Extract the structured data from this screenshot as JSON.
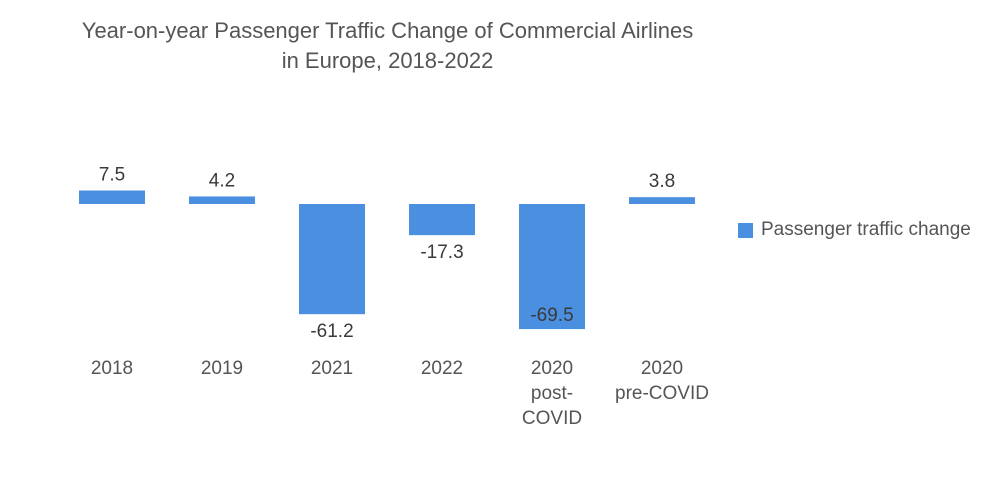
{
  "chart_data": {
    "type": "bar",
    "title": "Year-on-year Passenger Traffic Change of Commercial Airlines in Europe, 2018-2022",
    "title_lines": [
      "Year-on-year Passenger Traffic Change of Commercial Airlines",
      "in Europe, 2018-2022"
    ],
    "categories": [
      "2018",
      "2019",
      "2021",
      "2022",
      "2020 post-COVID",
      "2020 pre-COVID"
    ],
    "category_lines": [
      [
        "2018"
      ],
      [
        "2019"
      ],
      [
        "2021"
      ],
      [
        "2022"
      ],
      [
        "2020",
        "post-",
        "COVID"
      ],
      [
        "2020",
        "pre-COVID"
      ]
    ],
    "series": [
      {
        "name": "Passenger traffic change",
        "color": "#4a8fe0",
        "values": [
          7.5,
          4.2,
          -61.2,
          -17.3,
          -69.5,
          3.8
        ],
        "labels": [
          "7.5",
          "4.2",
          "-61.2",
          "-17.3",
          "-69.5",
          "3.8"
        ]
      }
    ],
    "xlabel": "",
    "ylabel": "",
    "ylim": [
      -70,
      8
    ],
    "grid": false,
    "legend": "right"
  }
}
